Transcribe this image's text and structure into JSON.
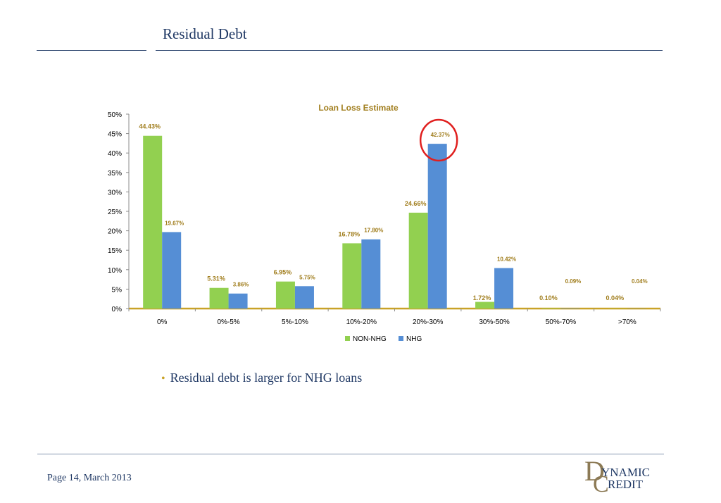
{
  "page": {
    "title": "Residual Debt",
    "bullet": "Residual debt is larger for NHG loans",
    "footer": "Page 14,  March 2013",
    "logo_text": "DYNAMIC CREDIT"
  },
  "colors": {
    "non_nhg": "#92d050",
    "nhg": "#558ed5",
    "label": "#a07d1c",
    "highlight": "#e0201f",
    "navy": "#1f3864"
  },
  "chart_data": {
    "type": "bar",
    "title": "Loan Loss Estimate",
    "categories": [
      "0%",
      "0%-5%",
      "5%-10%",
      "10%-20%",
      "20%-30%",
      "30%-50%",
      "50%-70%",
      ">70%"
    ],
    "series": [
      {
        "name": "NON-NHG",
        "values": [
          44.43,
          5.31,
          6.95,
          16.78,
          24.66,
          1.72,
          0.1,
          0.04
        ],
        "labels": [
          "44.43%",
          "5.31%",
          "6.95%",
          "16.78%",
          "24.66%",
          "1.72%",
          "0.10%",
          "0.04%"
        ]
      },
      {
        "name": "NHG",
        "values": [
          19.67,
          3.86,
          5.75,
          17.8,
          42.37,
          10.42,
          0.09,
          0.04
        ],
        "labels": [
          "19.67%",
          "3.86%",
          "5.75%",
          "17.80%",
          "42.37%",
          "10.42%",
          "0.09%",
          "0.04%"
        ]
      }
    ],
    "ylim": [
      0,
      50
    ],
    "yticks": [
      "0%",
      "5%",
      "10%",
      "15%",
      "20%",
      "25%",
      "30%",
      "35%",
      "40%",
      "45%",
      "50%"
    ],
    "grid": false,
    "legend": "bottom",
    "highlight": {
      "series": "NHG",
      "category": "20%-30%"
    }
  }
}
